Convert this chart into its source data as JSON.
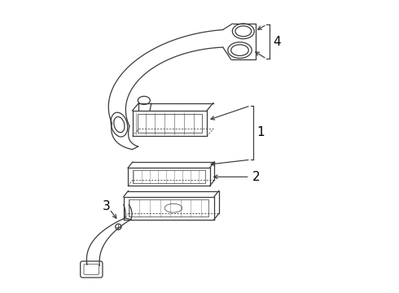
{
  "title": "",
  "background_color": "#ffffff",
  "line_color": "#3a3a3a",
  "label_color": "#000000",
  "label_fontsize": 11,
  "fig_width": 4.9,
  "fig_height": 3.6,
  "dpi": 100
}
